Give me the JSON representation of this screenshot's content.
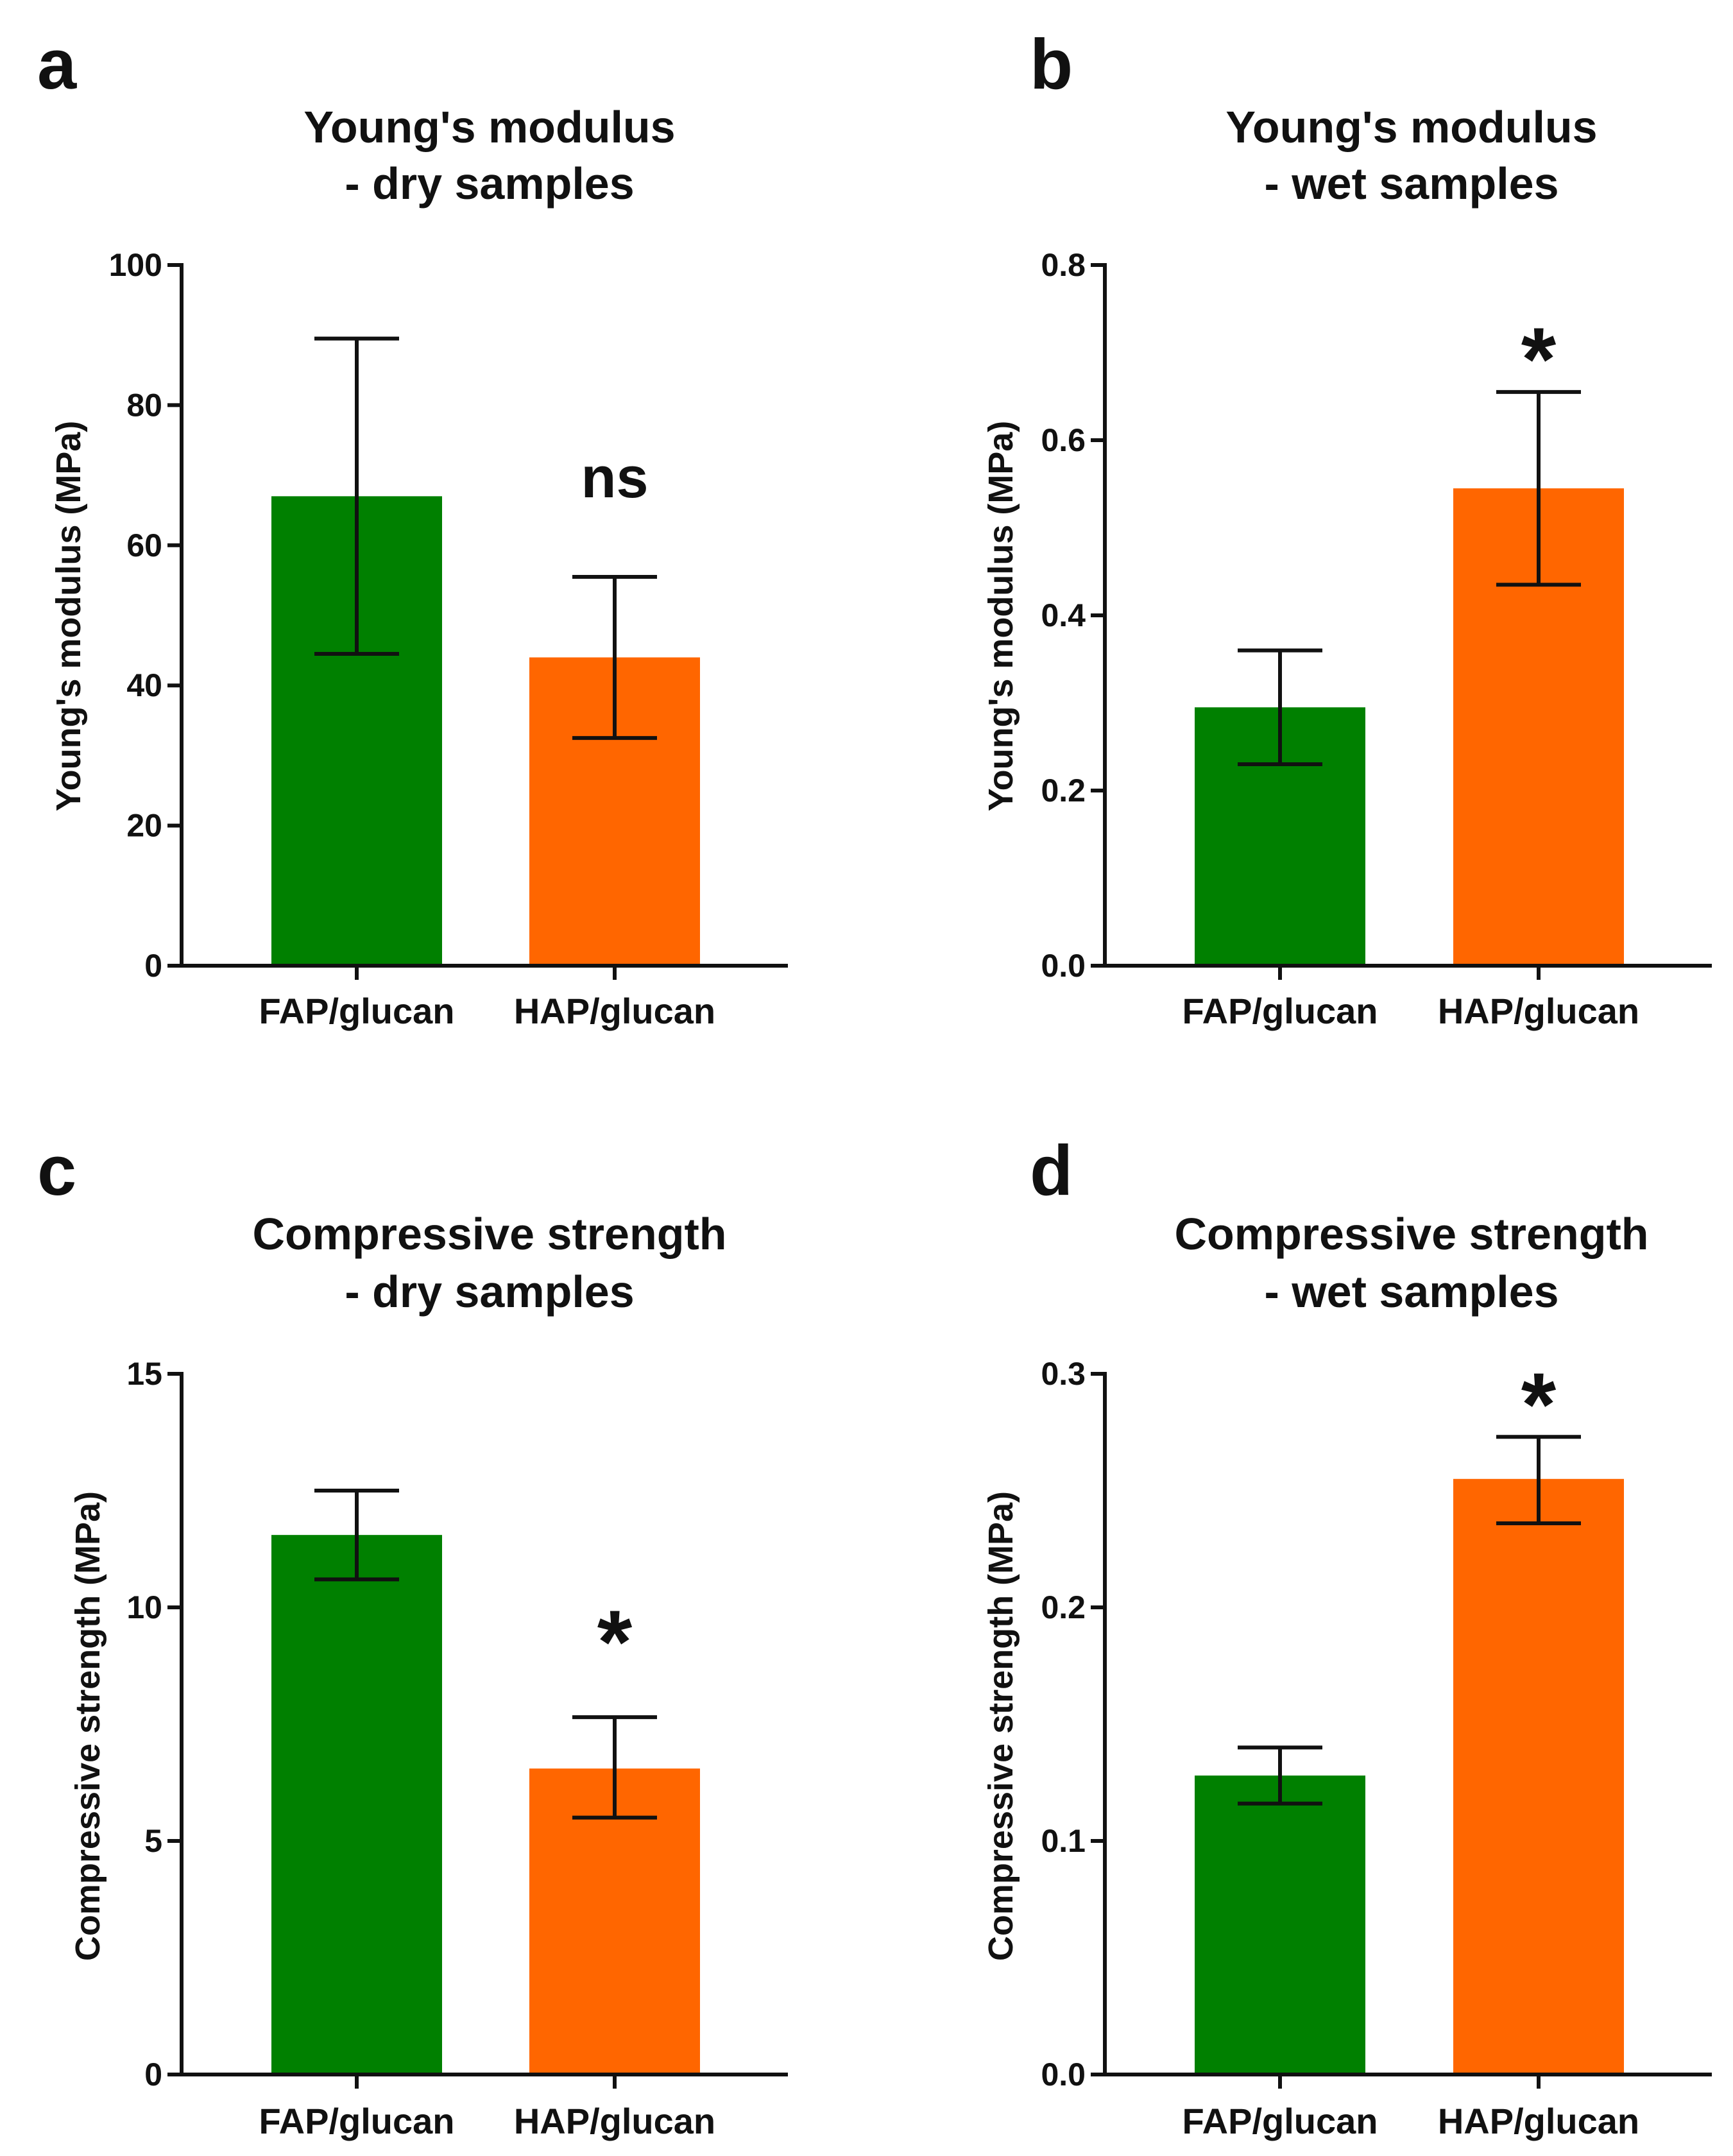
{
  "colors": {
    "FAP/glucan": "#008000",
    "HAP/glucan": "#ff6600",
    "axis": "#111111"
  },
  "chart_data": [
    {
      "panel": "a",
      "type": "bar",
      "title": [
        "Young's modulus",
        "- dry samples"
      ],
      "xlabel": "",
      "ylabel": "Young's modulus (MPa)",
      "categories": [
        "FAP/glucan",
        "HAP/glucan"
      ],
      "values": [
        67,
        44
      ],
      "error_low": [
        44.5,
        32.5
      ],
      "error_high": [
        89.5,
        55.5
      ],
      "ylim": [
        0,
        100
      ],
      "yticks": [
        "0",
        "20",
        "40",
        "60",
        "80",
        "100"
      ],
      "significance": [
        "",
        "ns"
      ]
    },
    {
      "panel": "b",
      "type": "bar",
      "title": [
        "Young's modulus",
        "- wet samples"
      ],
      "xlabel": "",
      "ylabel": "Young's modulus (MPa)",
      "categories": [
        "FAP/glucan",
        "HAP/glucan"
      ],
      "values": [
        0.295,
        0.545
      ],
      "error_low": [
        0.23,
        0.435
      ],
      "error_high": [
        0.36,
        0.655
      ],
      "ylim": [
        0,
        0.8
      ],
      "yticks": [
        "0.0",
        "0.2",
        "0.4",
        "0.6",
        "0.8"
      ],
      "significance": [
        "",
        "*"
      ]
    },
    {
      "panel": "c",
      "type": "bar",
      "title": [
        "Compressive strength",
        "- dry samples"
      ],
      "xlabel": "",
      "ylabel": "Compressive strength (MPa)",
      "categories": [
        "FAP/glucan",
        "HAP/glucan"
      ],
      "values": [
        11.55,
        6.55
      ],
      "error_low": [
        10.6,
        5.5
      ],
      "error_high": [
        12.5,
        7.65
      ],
      "ylim": [
        0,
        15
      ],
      "yticks": [
        "0",
        "5",
        "10",
        "15"
      ],
      "significance": [
        "",
        "*"
      ]
    },
    {
      "panel": "d",
      "type": "bar",
      "title": [
        "Compressive strength",
        "- wet samples"
      ],
      "xlabel": "",
      "ylabel": "Compressive strength (MPa)",
      "categories": [
        "FAP/glucan",
        "HAP/glucan"
      ],
      "values": [
        0.128,
        0.255
      ],
      "error_low": [
        0.116,
        0.236
      ],
      "error_high": [
        0.14,
        0.273
      ],
      "ylim": [
        0,
        0.3
      ],
      "yticks": [
        "0.0",
        "0.1",
        "0.2",
        "0.3"
      ],
      "significance": [
        "",
        "*"
      ]
    }
  ]
}
